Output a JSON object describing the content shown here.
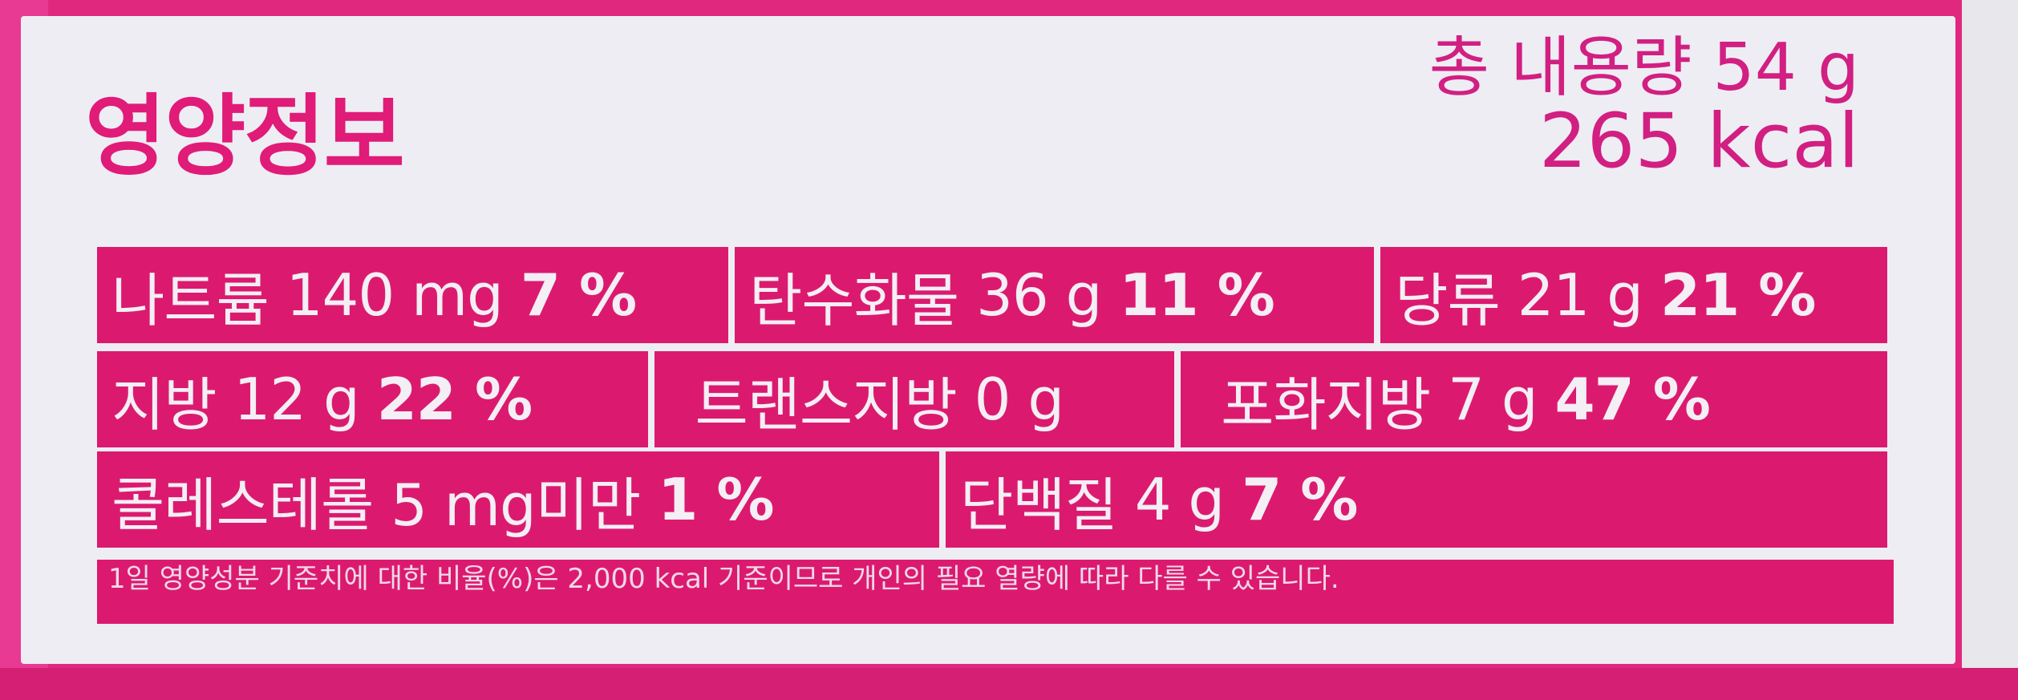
{
  "title": "영양정보",
  "total_weight": "총 내용량 54 g",
  "total_kcal": "265 kcal",
  "rows": [
    [
      {
        "name": "나트륨",
        "amount": "140 mg",
        "percent": "7 %"
      },
      {
        "name": "탄수화물",
        "amount": "36 g",
        "percent": "11 %"
      },
      {
        "name": "당류",
        "amount": "21 g",
        "percent": "21 %"
      }
    ],
    [
      {
        "name": "지방",
        "amount": "12 g",
        "percent": "22 %"
      },
      {
        "name": "트랜스지방",
        "amount": "0 g",
        "percent": ""
      },
      {
        "name": "포화지방",
        "amount": "7 g",
        "percent": "47 %"
      }
    ],
    [
      {
        "name": "콜레스테롤",
        "amount": "5 mg미만",
        "percent": "1 %"
      },
      {
        "name": "단백질",
        "amount": "4 g",
        "percent": "7 %"
      }
    ]
  ],
  "footnote": "1일 영양성분 기준치에 대한 비율(%)은 2,000 kcal 기준이므로 개인의 필요 열량에 따라 다를 수 있습니다.",
  "colors": {
    "pink": "#db1a6f",
    "label_bg": "#eeedf3",
    "title": "#e01b78"
  }
}
